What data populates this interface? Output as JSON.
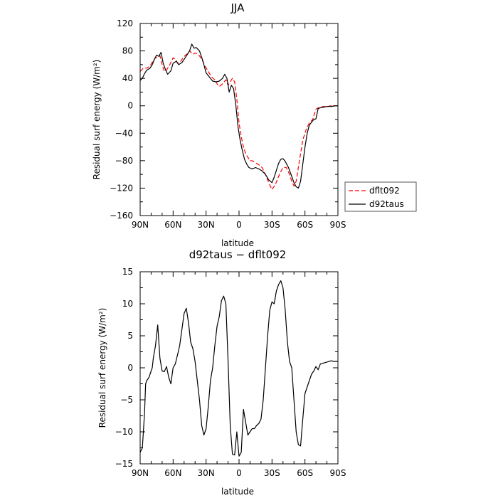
{
  "chart_data": [
    {
      "type": "line",
      "title": "JJA",
      "xlabel": "latitude",
      "ylabel": "Residual surf energy (W/m²)",
      "xlim": [
        90,
        -90
      ],
      "ylim": [
        -160,
        120
      ],
      "xticks": [
        90,
        60,
        30,
        0,
        -30,
        -60,
        -90
      ],
      "xtick_labels": [
        "90N",
        "60N",
        "30N",
        "0",
        "30S",
        "60S",
        "90S"
      ],
      "yticks": [
        -160,
        -120,
        -80,
        -40,
        0,
        40,
        80,
        120
      ],
      "ytick_labels": [
        "−160",
        "−120",
        "−80",
        "−40",
        "0",
        "40",
        "80",
        "120"
      ],
      "legend": {
        "placement": "right-middle outside"
      },
      "series": [
        {
          "name": "dflt092",
          "color": "#ff0000",
          "style": "dashed",
          "x": [
            90,
            87,
            84,
            81,
            78,
            76,
            74,
            72,
            70,
            68,
            66,
            63,
            60,
            58,
            56,
            53,
            50,
            47,
            45,
            42,
            40,
            37,
            34,
            31,
            28,
            25,
            22,
            20,
            18,
            15,
            12,
            10,
            8,
            6,
            4,
            2,
            0,
            -2,
            -4,
            -6,
            -8,
            -10,
            -12,
            -15,
            -18,
            -21,
            -24,
            -27,
            -30,
            -33,
            -36,
            -38,
            -40,
            -43,
            -46,
            -48,
            -50,
            -52,
            -55,
            -58,
            -61,
            -64,
            -67,
            -70,
            -72,
            -74,
            -77,
            -80,
            -84,
            -88,
            -90
          ],
          "y": [
            50,
            55,
            55,
            58,
            66,
            70,
            71,
            73,
            60,
            50,
            52,
            60,
            70,
            68,
            62,
            65,
            72,
            76,
            80,
            75,
            77,
            75,
            68,
            58,
            50,
            42,
            38,
            32,
            28,
            32,
            38,
            30,
            35,
            40,
            35,
            10,
            -25,
            -45,
            -60,
            -70,
            -75,
            -80,
            -80,
            -83,
            -86,
            -90,
            -100,
            -112,
            -122,
            -115,
            -103,
            -96,
            -90,
            -90,
            -100,
            -110,
            -117,
            -110,
            -80,
            -50,
            -35,
            -25,
            -20,
            -5,
            -3,
            -2,
            -1,
            -1,
            0,
            0,
            0
          ]
        },
        {
          "name": "d92taus",
          "color": "#000000",
          "style": "solid",
          "x": [
            90,
            88,
            86,
            84,
            81,
            79,
            77,
            75,
            73,
            71,
            69,
            67,
            65,
            62,
            60,
            57,
            55,
            52,
            49,
            47,
            45,
            43,
            41,
            39,
            36,
            33,
            30,
            27,
            24,
            21,
            18,
            15,
            13,
            11,
            9,
            7,
            5,
            3,
            1,
            -1,
            -3,
            -5,
            -7,
            -9,
            -12,
            -15,
            -18,
            -21,
            -24,
            -27,
            -30,
            -32,
            -34,
            -36,
            -38,
            -40,
            -42,
            -45,
            -48,
            -50,
            -52,
            -54,
            -56,
            -58,
            -60,
            -62,
            -64,
            -66,
            -68,
            -70,
            -72,
            -74,
            -77,
            -80,
            -84,
            -88,
            -90
          ],
          "y": [
            37,
            40,
            47,
            52,
            55,
            60,
            68,
            74,
            72,
            78,
            62,
            53,
            46,
            51,
            62,
            65,
            60,
            63,
            70,
            75,
            80,
            90,
            84,
            85,
            80,
            66,
            48,
            42,
            36,
            35,
            36,
            40,
            46,
            40,
            20,
            30,
            25,
            2,
            -30,
            -50,
            -65,
            -78,
            -85,
            -90,
            -92,
            -90,
            -92,
            -95,
            -100,
            -108,
            -112,
            -104,
            -94,
            -84,
            -78,
            -77,
            -81,
            -90,
            -103,
            -112,
            -118,
            -120,
            -110,
            -85,
            -60,
            -40,
            -28,
            -24,
            -20,
            -19,
            -4,
            -3,
            -2,
            -1,
            -1,
            0,
            0
          ]
        }
      ]
    },
    {
      "type": "line",
      "title": "d92taus − dflt092",
      "xlabel": "latitude",
      "ylabel": "Residual surf energy (W/m²)",
      "xlim": [
        90,
        -90
      ],
      "ylim": [
        -15,
        15
      ],
      "xticks": [
        90,
        60,
        30,
        0,
        -30,
        -60,
        -90
      ],
      "xtick_labels": [
        "90N",
        "60N",
        "30N",
        "0",
        "30S",
        "60S",
        "90S"
      ],
      "yticks": [
        -15,
        -10,
        -5,
        0,
        5,
        10,
        15
      ],
      "ytick_labels": [
        "−15",
        "−10",
        "−5",
        "0",
        "5",
        "10",
        "15"
      ],
      "series": [
        {
          "color": "#000000",
          "style": "solid",
          "x": [
            90,
            88,
            86,
            85,
            84,
            82,
            80,
            79,
            78,
            76,
            74,
            72,
            71,
            70,
            68,
            66,
            64,
            62,
            60,
            58,
            56,
            54,
            52,
            50,
            48,
            46,
            44,
            42,
            40,
            38,
            36,
            34,
            32,
            30,
            28,
            26,
            24,
            22,
            20,
            18,
            16,
            14,
            12,
            10,
            8,
            6,
            4,
            2,
            0,
            -2,
            -4,
            -6,
            -8,
            -10,
            -12,
            -14,
            -16,
            -18,
            -20,
            -22,
            -24,
            -26,
            -28,
            -30,
            -32,
            -34,
            -36,
            -38,
            -40,
            -42,
            -44,
            -46,
            -48,
            -50,
            -52,
            -54,
            -56,
            -58,
            -60,
            -62,
            -64,
            -66,
            -68,
            -70,
            -72,
            -74,
            -76,
            -78,
            -80,
            -82,
            -84,
            -86,
            -88,
            -90
          ],
          "y": [
            -13.2,
            -12.5,
            -7,
            -2.5,
            -2,
            -1.5,
            -0.5,
            0,
            1.5,
            3.5,
            6.7,
            1.5,
            0.5,
            -0.5,
            -0.6,
            0.2,
            -1.5,
            -2.5,
            0,
            0.6,
            2,
            3.5,
            6,
            8.5,
            9.3,
            7,
            4,
            3,
            1,
            -2,
            -5,
            -9,
            -10.5,
            -9.5,
            -6,
            -2,
            0,
            3.5,
            6.5,
            8,
            10.5,
            11.2,
            10,
            1,
            -9,
            -13.5,
            -13.6,
            -10,
            -13.8,
            -13.2,
            -6.5,
            -8.5,
            -10.5,
            -10,
            -9.5,
            -9.5,
            -9,
            -8.7,
            -8,
            -5,
            0,
            5,
            9,
            10.3,
            10,
            12,
            13,
            13.6,
            12.5,
            9,
            4,
            1,
            0,
            -5,
            -10,
            -12,
            -12.2,
            -8,
            -4,
            -3,
            -2,
            -1,
            -0.5,
            0.2,
            -0.3,
            0.6,
            0.7,
            0.8,
            0.9,
            1,
            1.1,
            1,
            1,
            1
          ]
        }
      ]
    }
  ]
}
